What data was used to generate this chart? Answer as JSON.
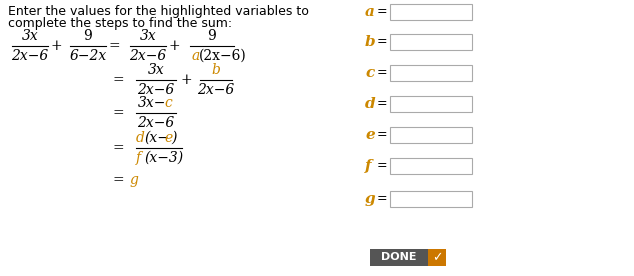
{
  "title_line1": "Enter the values for the highlighted variables to",
  "title_line2": "complete the steps to find the sum:",
  "bg_color": "#ffffff",
  "text_color": "#000000",
  "highlight_color": "#cc8800",
  "box_border_color": "#aaaaaa",
  "variables": [
    "a",
    "b",
    "c",
    "d",
    "e",
    "f",
    "g"
  ],
  "done_bg": "#555555",
  "done_check_bg": "#cc7700",
  "done_text": "DONE",
  "var_label_fontsize": 11,
  "math_fontsize": 10,
  "title_fontsize": 9
}
